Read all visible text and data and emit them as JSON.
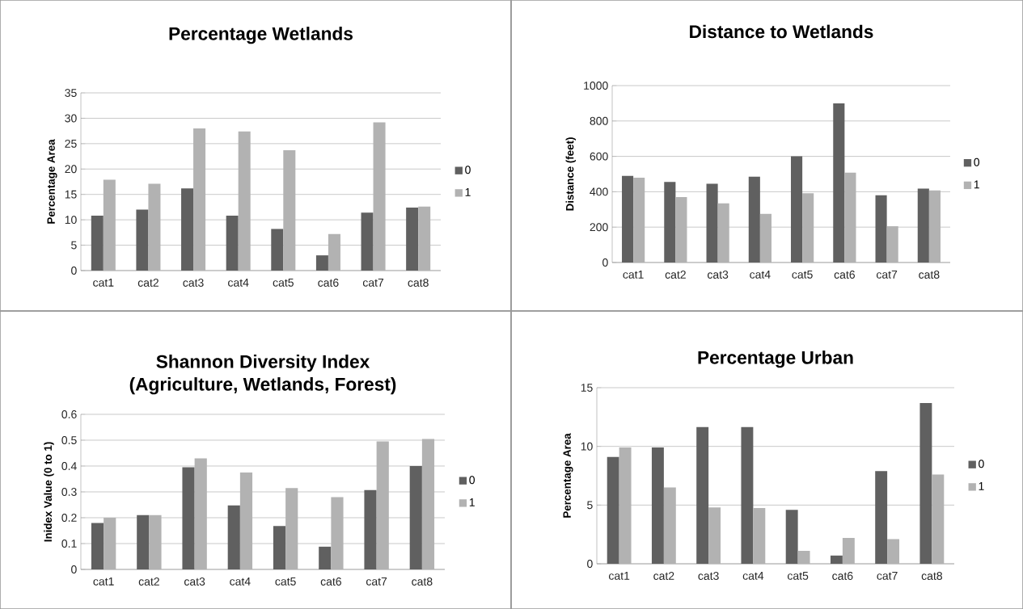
{
  "chart_data": [
    {
      "type": "bar",
      "title": "Percentage Wetlands",
      "ylabel": "Percentage Area",
      "categories": [
        "cat1",
        "cat2",
        "cat3",
        "cat4",
        "cat5",
        "cat6",
        "cat7",
        "cat8"
      ],
      "series": [
        {
          "name": "0",
          "color": "#606060",
          "values": [
            10.8,
            12,
            16.2,
            10.8,
            8.2,
            3,
            11.4,
            12.4
          ]
        },
        {
          "name": "1",
          "color": "#b2b2b2",
          "values": [
            17.9,
            17.1,
            28,
            27.4,
            23.7,
            7.2,
            29.2,
            12.6
          ]
        }
      ],
      "ylim": [
        0,
        35
      ],
      "yticks": [
        0,
        5,
        10,
        15,
        20,
        25,
        30,
        35
      ],
      "grid": "y",
      "legend": "right"
    },
    {
      "type": "bar",
      "title": "Distance to Wetlands",
      "ylabel": "Distance (feet)",
      "categories": [
        "cat1",
        "cat2",
        "cat3",
        "cat4",
        "cat5",
        "cat6",
        "cat7",
        "cat8"
      ],
      "series": [
        {
          "name": "0",
          "color": "#606060",
          "values": [
            490,
            455,
            445,
            485,
            600,
            900,
            380,
            418
          ]
        },
        {
          "name": "1",
          "color": "#b2b2b2",
          "values": [
            480,
            370,
            335,
            275,
            392,
            508,
            205,
            408
          ]
        }
      ],
      "ylim": [
        0,
        1000
      ],
      "yticks": [
        0,
        200,
        400,
        600,
        800,
        1000
      ],
      "grid": "y",
      "legend": "right"
    },
    {
      "type": "bar",
      "title": "Shannon Diversity Index",
      "subtitle": "(Agriculture, Wetlands, Forest)",
      "ylabel": "Inidex Value (0 to 1)",
      "categories": [
        "cat1",
        "cat2",
        "cat3",
        "cat4",
        "cat5",
        "cat6",
        "cat7",
        "cat8"
      ],
      "series": [
        {
          "name": "0",
          "color": "#606060",
          "values": [
            0.18,
            0.21,
            0.395,
            0.248,
            0.168,
            0.088,
            0.307,
            0.4
          ]
        },
        {
          "name": "1",
          "color": "#b2b2b2",
          "values": [
            0.2,
            0.21,
            0.43,
            0.375,
            0.315,
            0.28,
            0.495,
            0.505
          ]
        }
      ],
      "ylim": [
        0,
        0.6
      ],
      "yticks": [
        0,
        0.1,
        0.2,
        0.3,
        0.4,
        0.5,
        0.6
      ],
      "grid": "y",
      "legend": "right"
    },
    {
      "type": "bar",
      "title": "Percentage Urban",
      "ylabel": "Percentage Area",
      "categories": [
        "cat1",
        "cat2",
        "cat3",
        "cat4",
        "cat5",
        "cat6",
        "cat7",
        "cat8"
      ],
      "series": [
        {
          "name": "0",
          "color": "#606060",
          "values": [
            9.1,
            9.9,
            11.65,
            11.65,
            4.6,
            0.7,
            7.9,
            13.7
          ]
        },
        {
          "name": "1",
          "color": "#b2b2b2",
          "values": [
            9.9,
            6.5,
            4.8,
            4.75,
            1.1,
            2.2,
            2.1,
            7.6
          ]
        }
      ],
      "ylim": [
        0,
        15
      ],
      "yticks": [
        0,
        5,
        10,
        15
      ],
      "grid": "y",
      "legend": "right"
    }
  ]
}
